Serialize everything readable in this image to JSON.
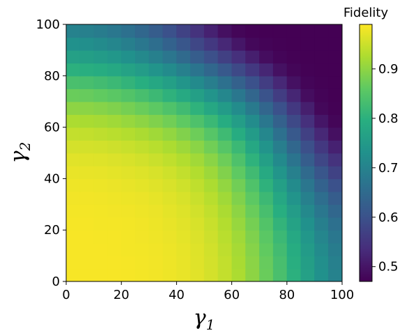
{
  "chart_data": {
    "type": "heatmap",
    "title": "",
    "xlabel": "γ",
    "xlabel_subscript": "1",
    "ylabel": "γ",
    "ylabel_subscript": "2",
    "xlim": [
      0,
      100
    ],
    "ylim": [
      0,
      100
    ],
    "xticks": [
      "0",
      "20",
      "40",
      "60",
      "80",
      "100"
    ],
    "yticks": [
      "0",
      "20",
      "40",
      "60",
      "80",
      "100"
    ],
    "grid": false,
    "colormap": "viridis",
    "colorbar": {
      "label": "Fidelity",
      "range": [
        0.47,
        0.99
      ],
      "ticks": [
        "0.5",
        "0.6",
        "0.7",
        "0.8",
        "0.9"
      ]
    },
    "grid_size": 20,
    "x_values": [
      2.5,
      7.5,
      12.5,
      17.5,
      22.5,
      27.5,
      32.5,
      37.5,
      42.5,
      47.5,
      52.5,
      57.5,
      62.5,
      67.5,
      72.5,
      77.5,
      82.5,
      87.5,
      92.5,
      97.5
    ],
    "y_values": [
      2.5,
      7.5,
      12.5,
      17.5,
      22.5,
      27.5,
      32.5,
      37.5,
      42.5,
      47.5,
      52.5,
      57.5,
      62.5,
      67.5,
      72.5,
      77.5,
      82.5,
      87.5,
      92.5,
      97.5
    ],
    "values": [
      [
        0.985,
        0.985,
        0.985,
        0.985,
        0.984,
        0.983,
        0.981,
        0.978,
        0.974,
        0.967,
        0.957,
        0.943,
        0.924,
        0.899,
        0.869,
        0.836,
        0.8,
        0.764,
        0.73,
        0.699
      ],
      [
        0.985,
        0.985,
        0.985,
        0.985,
        0.984,
        0.983,
        0.981,
        0.978,
        0.973,
        0.966,
        0.956,
        0.942,
        0.922,
        0.897,
        0.867,
        0.833,
        0.796,
        0.76,
        0.726,
        0.695
      ],
      [
        0.985,
        0.985,
        0.985,
        0.984,
        0.983,
        0.982,
        0.98,
        0.977,
        0.972,
        0.965,
        0.954,
        0.939,
        0.919,
        0.893,
        0.862,
        0.827,
        0.79,
        0.753,
        0.718,
        0.687
      ],
      [
        0.985,
        0.985,
        0.984,
        0.984,
        0.983,
        0.981,
        0.979,
        0.975,
        0.97,
        0.962,
        0.951,
        0.935,
        0.914,
        0.887,
        0.855,
        0.819,
        0.781,
        0.743,
        0.707,
        0.676
      ],
      [
        0.984,
        0.984,
        0.983,
        0.983,
        0.982,
        0.98,
        0.977,
        0.973,
        0.967,
        0.959,
        0.947,
        0.93,
        0.907,
        0.879,
        0.846,
        0.808,
        0.769,
        0.73,
        0.693,
        0.661
      ],
      [
        0.983,
        0.983,
        0.982,
        0.981,
        0.98,
        0.978,
        0.975,
        0.97,
        0.964,
        0.954,
        0.941,
        0.923,
        0.899,
        0.869,
        0.834,
        0.795,
        0.754,
        0.714,
        0.676,
        0.643
      ],
      [
        0.981,
        0.981,
        0.98,
        0.979,
        0.977,
        0.975,
        0.971,
        0.966,
        0.959,
        0.948,
        0.934,
        0.914,
        0.888,
        0.857,
        0.82,
        0.779,
        0.737,
        0.695,
        0.656,
        0.622
      ],
      [
        0.978,
        0.978,
        0.977,
        0.975,
        0.973,
        0.97,
        0.966,
        0.96,
        0.952,
        0.94,
        0.924,
        0.903,
        0.876,
        0.842,
        0.803,
        0.761,
        0.717,
        0.673,
        0.633,
        0.598
      ],
      [
        0.974,
        0.973,
        0.972,
        0.97,
        0.967,
        0.964,
        0.959,
        0.952,
        0.942,
        0.929,
        0.912,
        0.889,
        0.86,
        0.825,
        0.784,
        0.74,
        0.694,
        0.649,
        0.608,
        0.572
      ],
      [
        0.967,
        0.966,
        0.965,
        0.962,
        0.959,
        0.954,
        0.948,
        0.94,
        0.929,
        0.915,
        0.896,
        0.872,
        0.841,
        0.804,
        0.762,
        0.716,
        0.669,
        0.623,
        0.581,
        0.545
      ],
      [
        0.957,
        0.956,
        0.954,
        0.951,
        0.947,
        0.941,
        0.934,
        0.924,
        0.912,
        0.896,
        0.876,
        0.85,
        0.818,
        0.78,
        0.737,
        0.69,
        0.642,
        0.596,
        0.554,
        0.518
      ],
      [
        0.943,
        0.942,
        0.939,
        0.935,
        0.93,
        0.923,
        0.914,
        0.903,
        0.889,
        0.872,
        0.85,
        0.823,
        0.79,
        0.752,
        0.708,
        0.661,
        0.614,
        0.568,
        0.527,
        0.492
      ],
      [
        0.924,
        0.922,
        0.919,
        0.914,
        0.907,
        0.899,
        0.888,
        0.876,
        0.86,
        0.841,
        0.818,
        0.79,
        0.757,
        0.719,
        0.676,
        0.631,
        0.585,
        0.541,
        0.501,
        0.477
      ],
      [
        0.899,
        0.897,
        0.893,
        0.887,
        0.879,
        0.869,
        0.857,
        0.842,
        0.825,
        0.804,
        0.78,
        0.752,
        0.719,
        0.682,
        0.641,
        0.598,
        0.555,
        0.514,
        0.48,
        0.472
      ],
      [
        0.869,
        0.867,
        0.862,
        0.855,
        0.846,
        0.834,
        0.82,
        0.803,
        0.784,
        0.762,
        0.737,
        0.708,
        0.676,
        0.641,
        0.603,
        0.563,
        0.524,
        0.488,
        0.475,
        0.47
      ],
      [
        0.836,
        0.833,
        0.827,
        0.819,
        0.808,
        0.795,
        0.779,
        0.761,
        0.74,
        0.716,
        0.69,
        0.661,
        0.631,
        0.598,
        0.563,
        0.527,
        0.493,
        0.476,
        0.471,
        0.47
      ],
      [
        0.8,
        0.796,
        0.79,
        0.781,
        0.769,
        0.754,
        0.737,
        0.717,
        0.694,
        0.669,
        0.642,
        0.614,
        0.585,
        0.555,
        0.524,
        0.493,
        0.477,
        0.471,
        0.47,
        0.47
      ],
      [
        0.764,
        0.76,
        0.753,
        0.743,
        0.73,
        0.714,
        0.695,
        0.673,
        0.649,
        0.623,
        0.596,
        0.568,
        0.541,
        0.514,
        0.488,
        0.476,
        0.471,
        0.47,
        0.47,
        0.47
      ],
      [
        0.73,
        0.726,
        0.718,
        0.707,
        0.693,
        0.676,
        0.656,
        0.633,
        0.608,
        0.581,
        0.554,
        0.527,
        0.501,
        0.48,
        0.475,
        0.471,
        0.47,
        0.47,
        0.47,
        0.47
      ],
      [
        0.699,
        0.695,
        0.687,
        0.676,
        0.661,
        0.643,
        0.622,
        0.598,
        0.572,
        0.545,
        0.518,
        0.492,
        0.477,
        0.472,
        0.47,
        0.47,
        0.47,
        0.47,
        0.47,
        0.47
      ]
    ]
  }
}
